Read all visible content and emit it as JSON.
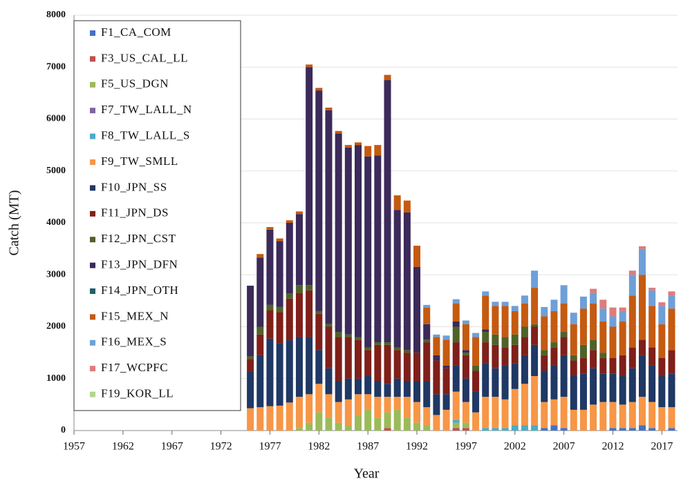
{
  "chart_data": {
    "type": "stacked_bar",
    "x_label": "Year",
    "y_label": "Catch (MT)",
    "x": [
      1975,
      1976,
      1977,
      1978,
      1979,
      1980,
      1981,
      1982,
      1983,
      1984,
      1985,
      1986,
      1987,
      1988,
      1989,
      1990,
      1991,
      1992,
      1993,
      1994,
      1995,
      1996,
      1997,
      1998,
      1999,
      2000,
      2001,
      2002,
      2003,
      2004,
      2005,
      2006,
      2007,
      2008,
      2009,
      2010,
      2011,
      2012,
      2013,
      2014,
      2015,
      2016,
      2017,
      2018
    ],
    "xlim": [
      1957,
      2018.6
    ],
    "xticks": [
      1957,
      1962,
      1967,
      1972,
      1977,
      1982,
      1987,
      1992,
      1997,
      2002,
      2007,
      2012,
      2017
    ],
    "ylim": [
      0,
      8000
    ],
    "yticks": [
      0,
      1000,
      2000,
      3000,
      4000,
      5000,
      6000,
      7000,
      8000
    ],
    "grid": true,
    "series": [
      {
        "name": "F1_CA_COM",
        "color": "#4472c4",
        "values": [
          0,
          0,
          0,
          0,
          0,
          0,
          0,
          0,
          0,
          0,
          0,
          0,
          0,
          0,
          0,
          0,
          0,
          0,
          0,
          0,
          0,
          0,
          0,
          0,
          0,
          0,
          0,
          0,
          0,
          0,
          50,
          100,
          50,
          0,
          0,
          0,
          0,
          50,
          50,
          50,
          100,
          50,
          0,
          50
        ]
      },
      {
        "name": "F3_US_CAL_LL",
        "color": "#c0504d",
        "values": [
          0,
          0,
          0,
          0,
          0,
          0,
          0,
          0,
          0,
          0,
          0,
          0,
          0,
          0,
          50,
          0,
          0,
          0,
          0,
          0,
          0,
          50,
          50,
          0,
          0,
          0,
          0,
          0,
          0,
          0,
          0,
          0,
          0,
          0,
          0,
          0,
          0,
          0,
          0,
          0,
          0,
          0,
          0,
          0
        ]
      },
      {
        "name": "F5_US_DGN",
        "color": "#9bbb59",
        "values": [
          0,
          0,
          0,
          0,
          0,
          50,
          150,
          350,
          250,
          150,
          100,
          300,
          400,
          250,
          300,
          400,
          250,
          150,
          100,
          0,
          0,
          100,
          100,
          0,
          0,
          0,
          0,
          0,
          0,
          0,
          0,
          0,
          0,
          0,
          0,
          0,
          0,
          0,
          0,
          0,
          0,
          0,
          0,
          0
        ]
      },
      {
        "name": "F7_TW_LALL_N",
        "color": "#8064a2",
        "values": [
          0,
          0,
          0,
          0,
          0,
          0,
          0,
          0,
          0,
          0,
          0,
          0,
          0,
          0,
          0,
          0,
          0,
          0,
          0,
          0,
          0,
          0,
          0,
          0,
          0,
          0,
          0,
          0,
          0,
          0,
          0,
          0,
          0,
          0,
          0,
          0,
          0,
          0,
          0,
          0,
          0,
          0,
          0,
          0
        ]
      },
      {
        "name": "F8_TW_LALL_S",
        "color": "#4bacc6",
        "values": [
          0,
          0,
          0,
          0,
          0,
          0,
          0,
          0,
          0,
          0,
          0,
          0,
          0,
          0,
          0,
          0,
          0,
          0,
          0,
          0,
          0,
          50,
          0,
          0,
          50,
          50,
          50,
          100,
          100,
          100,
          0,
          0,
          0,
          0,
          0,
          0,
          0,
          0,
          0,
          0,
          0,
          0,
          0,
          0
        ]
      },
      {
        "name": "F9_TW_SMLL",
        "color": "#f79646",
        "values": [
          430,
          450,
          470,
          480,
          540,
          600,
          550,
          550,
          450,
          400,
          500,
          400,
          300,
          400,
          300,
          250,
          400,
          400,
          350,
          300,
          400,
          550,
          400,
          350,
          600,
          600,
          550,
          700,
          800,
          950,
          500,
          500,
          600,
          400,
          400,
          500,
          550,
          500,
          450,
          500,
          550,
          500,
          450,
          400
        ]
      },
      {
        "name": "F10_JPN_SS",
        "color": "#1f3864",
        "values": [
          700,
          1000,
          1300,
          1200,
          1200,
          1150,
          1100,
          650,
          500,
          400,
          400,
          300,
          350,
          300,
          250,
          350,
          300,
          400,
          500,
          400,
          300,
          500,
          450,
          400,
          650,
          550,
          650,
          500,
          550,
          600,
          600,
          650,
          800,
          650,
          700,
          700,
          550,
          550,
          550,
          650,
          800,
          700,
          600,
          650
        ]
      },
      {
        "name": "F11_JPN_DS",
        "color": "#7f1f1a",
        "values": [
          250,
          400,
          550,
          600,
          800,
          850,
          900,
          700,
          800,
          850,
          800,
          750,
          500,
          700,
          750,
          550,
          550,
          550,
          750,
          650,
          500,
          450,
          450,
          400,
          400,
          450,
          350,
          350,
          350,
          350,
          300,
          350,
          350,
          300,
          300,
          350,
          300,
          300,
          400,
          400,
          300,
          350,
          350,
          450
        ]
      },
      {
        "name": "F12_JPN_CST",
        "color": "#4f6228",
        "values": [
          50,
          150,
          100,
          100,
          100,
          150,
          100,
          50,
          50,
          100,
          50,
          50,
          50,
          50,
          50,
          50,
          50,
          0,
          50,
          0,
          0,
          300,
          50,
          100,
          200,
          200,
          200,
          200,
          200,
          50,
          100,
          100,
          100,
          100,
          250,
          200,
          100,
          0,
          0,
          0,
          0,
          0,
          0,
          0
        ]
      },
      {
        "name": "F13_JPN_DFN",
        "color": "#3b2a5a",
        "values": [
          1360,
          1330,
          1450,
          1270,
          1360,
          1370,
          4200,
          4250,
          4120,
          3820,
          3600,
          3700,
          3680,
          3600,
          5050,
          2650,
          2650,
          1650,
          300,
          100,
          50,
          100,
          50,
          0,
          50,
          0,
          0,
          0,
          0,
          0,
          0,
          0,
          0,
          0,
          0,
          0,
          0,
          0,
          0,
          0,
          0,
          0,
          0,
          0
        ]
      },
      {
        "name": "F14_JPN_OTH",
        "color": "#215f6b",
        "values": [
          0,
          0,
          0,
          0,
          0,
          0,
          0,
          0,
          0,
          0,
          0,
          0,
          0,
          0,
          0,
          0,
          0,
          0,
          0,
          0,
          0,
          0,
          0,
          0,
          0,
          0,
          0,
          0,
          0,
          0,
          0,
          0,
          0,
          0,
          0,
          0,
          0,
          0,
          0,
          0,
          0,
          0,
          0,
          0
        ]
      },
      {
        "name": "F15_MEX_N",
        "color": "#c55a11",
        "values": [
          0,
          70,
          50,
          50,
          50,
          50,
          50,
          50,
          50,
          50,
          50,
          50,
          200,
          200,
          100,
          280,
          230,
          410,
          320,
          350,
          500,
          350,
          500,
          550,
          650,
          550,
          600,
          450,
          450,
          700,
          650,
          600,
          550,
          600,
          700,
          700,
          600,
          600,
          650,
          1000,
          1250,
          800,
          650,
          800
        ]
      },
      {
        "name": "F16_MEX_S",
        "color": "#6f9fd8",
        "values": [
          0,
          0,
          0,
          0,
          0,
          0,
          0,
          0,
          0,
          0,
          0,
          0,
          0,
          0,
          0,
          0,
          0,
          0,
          50,
          50,
          80,
          80,
          70,
          80,
          80,
          80,
          80,
          100,
          150,
          330,
          180,
          220,
          350,
          220,
          230,
          200,
          250,
          200,
          200,
          400,
          500,
          300,
          350,
          250
        ]
      },
      {
        "name": "F17_WCPFC",
        "color": "#e07b7b",
        "values": [
          0,
          0,
          0,
          0,
          0,
          0,
          0,
          0,
          0,
          0,
          0,
          0,
          0,
          0,
          0,
          0,
          0,
          0,
          0,
          0,
          0,
          0,
          0,
          0,
          0,
          0,
          0,
          0,
          0,
          0,
          0,
          0,
          0,
          0,
          0,
          80,
          170,
          170,
          70,
          80,
          50,
          50,
          70,
          80
        ]
      },
      {
        "name": "F19_KOR_LL",
        "color": "#b3d68a",
        "values": [
          0,
          0,
          0,
          0,
          0,
          0,
          0,
          0,
          0,
          0,
          0,
          0,
          0,
          0,
          0,
          0,
          0,
          0,
          0,
          0,
          0,
          0,
          0,
          0,
          0,
          0,
          0,
          0,
          0,
          0,
          0,
          0,
          0,
          0,
          0,
          0,
          0,
          0,
          0,
          0,
          0,
          0,
          0,
          0
        ]
      }
    ]
  }
}
